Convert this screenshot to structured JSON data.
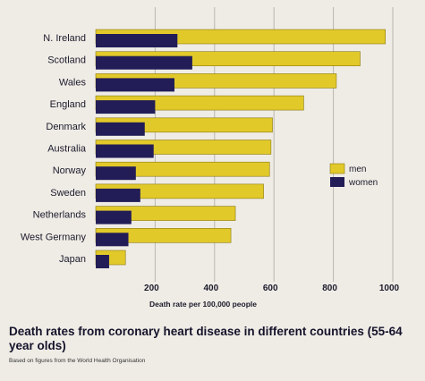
{
  "colors": {
    "background": "#efece6",
    "men": "#e2c92a",
    "women": "#221d57",
    "text": "#1b1a2a"
  },
  "caption": {
    "title": "Death rates from coronary heart disease in different countries (55-64 year olds)",
    "source": "Based on figures from the World Health Organisation"
  },
  "chart_data": {
    "type": "bar",
    "orientation": "horizontal",
    "categories": [
      "N. Ireland",
      "Scotland",
      "Wales",
      "England",
      "Denmark",
      "Australia",
      "Norway",
      "Sweden",
      "Netherlands",
      "West Germany",
      "Japan"
    ],
    "series": [
      {
        "name": "men",
        "values": [
          975,
          890,
          810,
          700,
          595,
          590,
          585,
          565,
          470,
          455,
          100
        ]
      },
      {
        "name": "women",
        "values": [
          275,
          325,
          265,
          200,
          165,
          195,
          135,
          150,
          120,
          110,
          45
        ]
      }
    ],
    "xlabel": "Death rate per 100,000 people",
    "xticks": [
      200,
      400,
      600,
      800,
      1000
    ],
    "xlim": [
      0,
      1000
    ],
    "legend_position": "right",
    "grid": true
  }
}
